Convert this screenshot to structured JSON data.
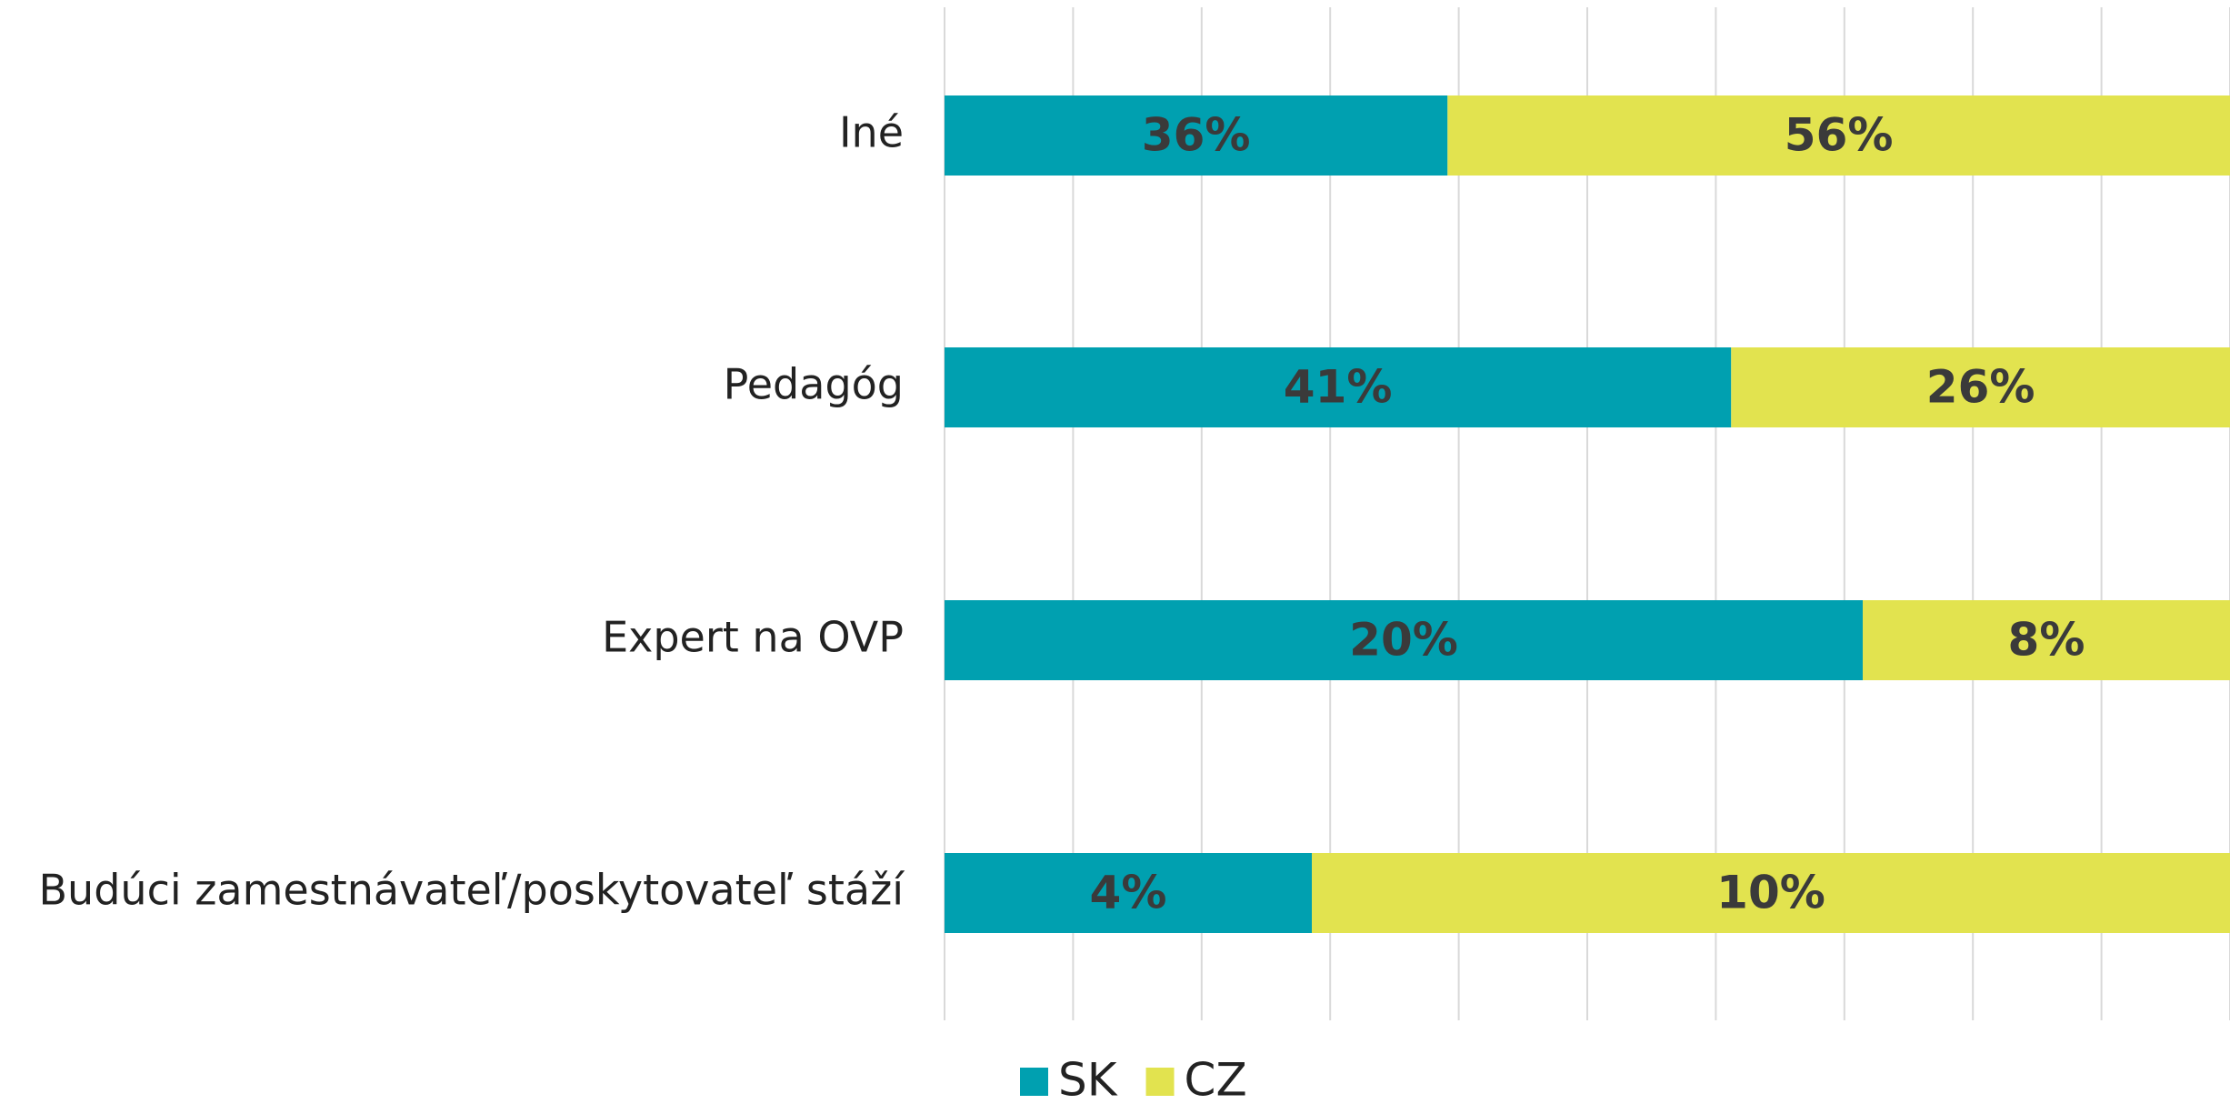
{
  "chart_data": {
    "type": "bar_stacked_100",
    "orientation": "horizontal",
    "categories": [
      "Iné",
      "Pedagóg",
      "Expert na OVP",
      "Budúci zamestnávateľ/poskytovateľ stáží"
    ],
    "series": [
      {
        "name": "SK",
        "color": "#00a0b0",
        "values": [
          36,
          41,
          20,
          4
        ],
        "value_labels": [
          "36%",
          "41%",
          "20%",
          "4%"
        ]
      },
      {
        "name": "CZ",
        "color": "#e2e34f",
        "values": [
          56,
          26,
          8,
          10
        ],
        "value_labels": [
          "56%",
          "26%",
          "8%",
          "10%"
        ]
      }
    ],
    "xlim": [
      0,
      100
    ],
    "xticks": [
      0,
      10,
      20,
      30,
      40,
      50,
      60,
      70,
      80,
      90,
      100
    ],
    "grid": true,
    "legend": "bottom"
  }
}
